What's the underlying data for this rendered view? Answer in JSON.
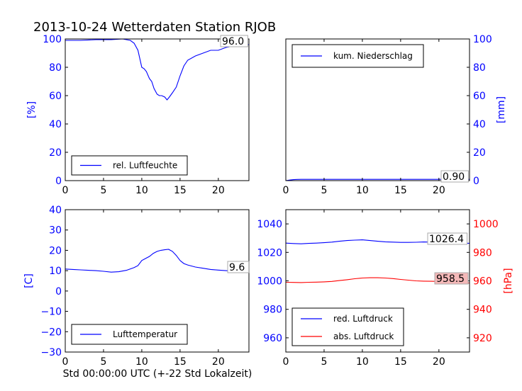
{
  "figure": {
    "title": "2013-10-24 Wetterdaten Station RJOB",
    "xlabel": "Std 00:00:00 UTC (+-22 Std Lokalzeit)"
  },
  "colors": {
    "blue": "#0000ff",
    "red": "#ff0000",
    "label_box_red": "#f4b8b8"
  },
  "chart_data": [
    {
      "type": "line",
      "ylabel": "[%]",
      "xlim": [
        0,
        24
      ],
      "ylim": [
        0,
        100
      ],
      "xticks": [
        "0",
        "5",
        "10",
        "15",
        "20"
      ],
      "yticks": [
        "0",
        "20",
        "40",
        "60",
        "80",
        "100"
      ],
      "legend": {
        "placement": "lower-left",
        "entries": [
          "rel. Luftfeuchte"
        ]
      },
      "last_value_label": "96.0",
      "series": [
        {
          "name": "rel. Luftfeuchte",
          "color": "#0000ff",
          "x": [
            0,
            2,
            4,
            6,
            7.5,
            8,
            8.5,
            9,
            9.5,
            10,
            10.3,
            10.6,
            11,
            11.3,
            11.6,
            12,
            12.3,
            12.6,
            13,
            13.3,
            13.6,
            14,
            14.5,
            15,
            15.5,
            16,
            17,
            18,
            19,
            20,
            21,
            22,
            23,
            24
          ],
          "y": [
            99,
            99,
            99.5,
            99.5,
            100,
            99.5,
            99,
            97,
            92,
            80,
            79,
            77,
            72,
            70,
            65,
            61,
            60,
            60,
            59,
            57,
            59,
            62,
            66,
            74,
            81,
            85,
            88,
            90,
            92,
            92,
            94,
            95,
            96,
            96
          ]
        }
      ]
    },
    {
      "type": "line",
      "ylabel": "[mm]",
      "xlim": [
        0,
        24
      ],
      "ylim": [
        0,
        100
      ],
      "xticks": [
        "0",
        "5",
        "10",
        "15",
        "20"
      ],
      "yticks": [
        "0",
        "20",
        "40",
        "60",
        "80",
        "100"
      ],
      "legend": {
        "placement": "upper-left",
        "entries": [
          "kum. Niederschlag"
        ]
      },
      "last_value_label": "0.90",
      "series": [
        {
          "name": "kum. Niederschlag",
          "color": "#0000ff",
          "x": [
            0,
            0.5,
            1,
            1.5,
            2,
            5,
            10,
            15,
            20,
            24
          ],
          "y": [
            0,
            0.4,
            0.7,
            0.85,
            0.9,
            0.9,
            0.9,
            0.9,
            0.9,
            0.9
          ]
        }
      ]
    },
    {
      "type": "line",
      "ylabel": "[C]",
      "xlim": [
        0,
        24
      ],
      "ylim": [
        -30,
        40
      ],
      "xticks": [
        "0",
        "5",
        "10",
        "15",
        "20"
      ],
      "yticks": [
        "−30",
        "−20",
        "−10",
        "0",
        "10",
        "20",
        "30",
        "40"
      ],
      "legend": {
        "placement": "lower-left",
        "entries": [
          "Lufttemperatur"
        ]
      },
      "last_value_label": "9.6",
      "series": [
        {
          "name": "Lufttemperatur",
          "color": "#0000ff",
          "x": [
            0,
            1,
            2,
            3,
            4,
            5,
            6,
            7,
            8,
            9,
            9.5,
            10,
            10.5,
            11,
            11.5,
            12,
            12.5,
            13,
            13.5,
            14,
            14.5,
            15,
            15.5,
            16,
            17,
            18,
            19,
            20,
            21,
            22,
            23,
            24
          ],
          "y": [
            10.8,
            10.6,
            10.4,
            10.2,
            10,
            9.7,
            9.3,
            9.5,
            10.2,
            11.5,
            12.5,
            15,
            16,
            17,
            18.5,
            19.5,
            20,
            20.3,
            20.5,
            19.5,
            17.5,
            15,
            13.5,
            12.8,
            11.8,
            11.2,
            10.6,
            10.3,
            10,
            9.8,
            9.7,
            9.6
          ]
        }
      ]
    },
    {
      "type": "line",
      "ylabel": "[hPa]",
      "xlim": [
        0,
        24
      ],
      "ylim_left": [
        950,
        1050
      ],
      "ylim_right": [
        910,
        1010
      ],
      "xticks": [
        "0",
        "5",
        "10",
        "15",
        "20"
      ],
      "yticks_left": [
        "960",
        "980",
        "1000",
        "1020",
        "1040"
      ],
      "yticks_right": [
        "920",
        "940",
        "960",
        "980",
        "1000"
      ],
      "legend": {
        "placement": "lower-left",
        "entries": [
          "red. Luftdruck",
          "abs. Luftdruck"
        ]
      },
      "series": [
        {
          "name": "red. Luftdruck",
          "color": "#0000ff",
          "axis": "left",
          "last_value_label": "1026.4",
          "x": [
            0,
            1,
            2,
            3,
            4,
            5,
            6,
            7,
            8,
            9,
            10,
            11,
            12,
            13,
            14,
            15,
            16,
            17,
            18,
            19,
            20,
            21,
            22,
            23,
            24
          ],
          "y": [
            1026.5,
            1026.2,
            1026.0,
            1026.3,
            1026.5,
            1026.8,
            1027.2,
            1027.8,
            1028.3,
            1028.6,
            1028.8,
            1028.3,
            1027.8,
            1027.4,
            1027.2,
            1027.0,
            1027.0,
            1027.1,
            1027.3,
            1027.2,
            1026.9,
            1026.6,
            1026.5,
            1026.4,
            1026.4
          ]
        },
        {
          "name": "abs. Luftdruck",
          "color": "#ff0000",
          "axis": "right",
          "last_value_label": "958.5",
          "x": [
            0,
            1,
            2,
            3,
            4,
            5,
            6,
            7,
            8,
            9,
            10,
            11,
            12,
            13,
            14,
            15,
            16,
            17,
            18,
            19,
            20,
            21,
            22,
            23,
            24
          ],
          "y": [
            959.0,
            958.9,
            958.8,
            959.0,
            959.1,
            959.3,
            959.6,
            960.2,
            960.8,
            961.5,
            962.0,
            962.2,
            962.2,
            962.0,
            961.6,
            961.0,
            960.5,
            960.0,
            959.8,
            959.7,
            959.6,
            959.2,
            958.9,
            958.6,
            958.5
          ]
        }
      ]
    }
  ]
}
